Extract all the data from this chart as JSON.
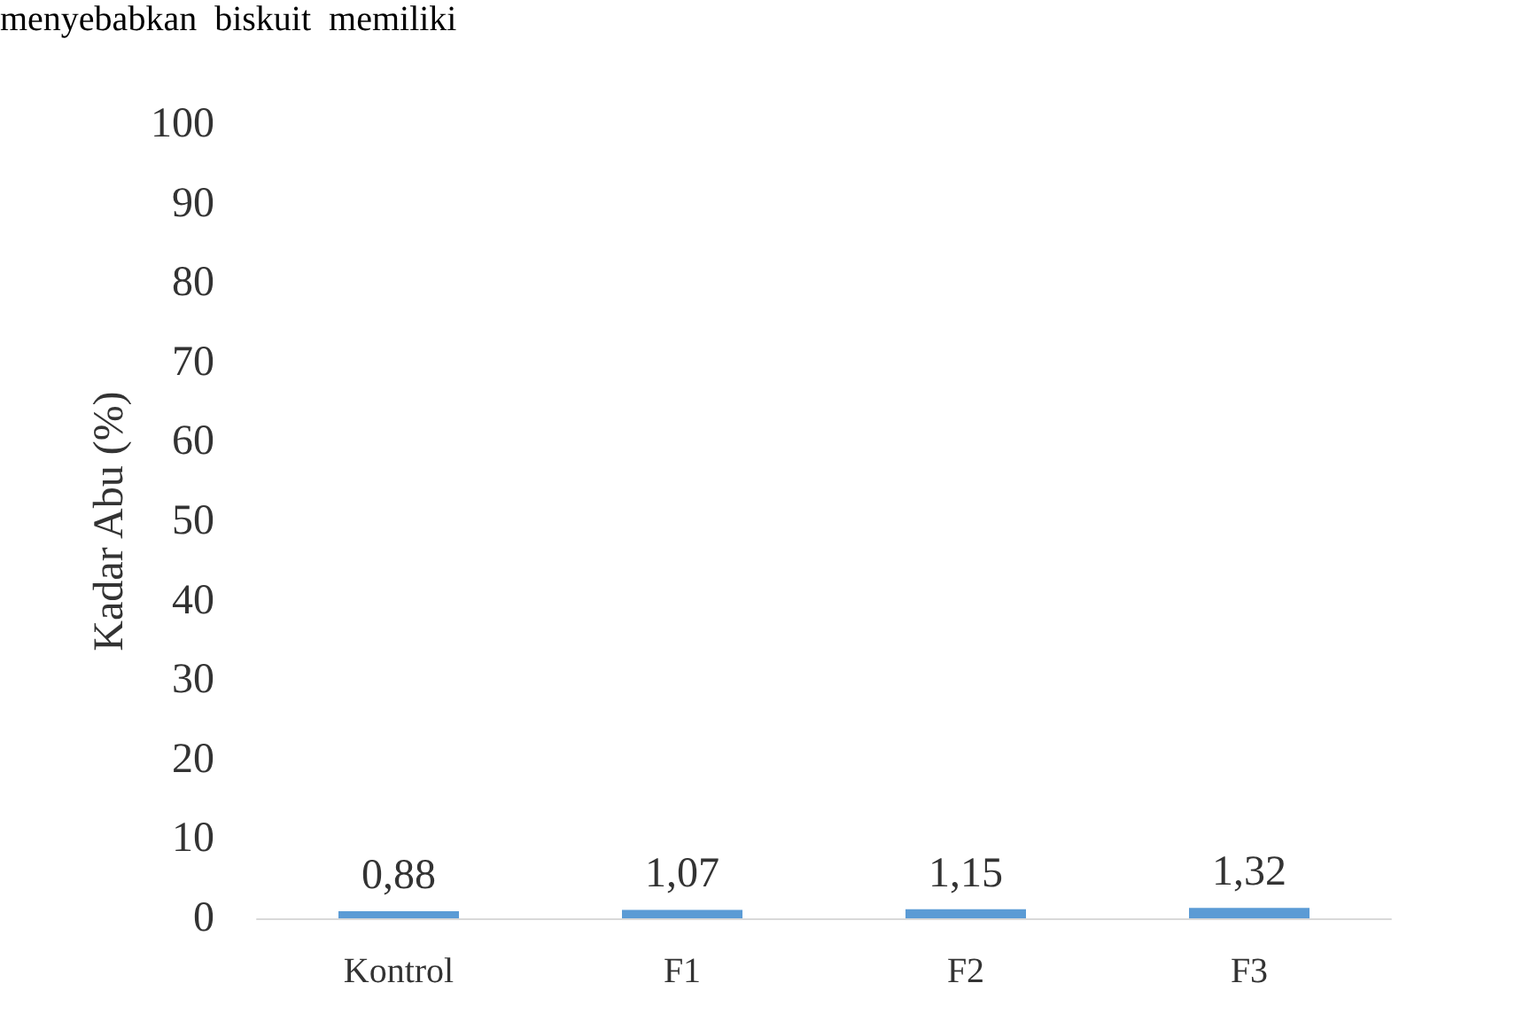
{
  "chart_data": {
    "type": "bar",
    "ylabel": "Kadar Abu (%)",
    "annotations": [
      "menyebabkan  biskuit  memiliki"
    ],
    "categories": [
      "Kontrol",
      "F1",
      "F2",
      "F3"
    ],
    "values": [
      0.88,
      1.07,
      1.15,
      1.32
    ],
    "value_labels": [
      "0,88",
      "1,07",
      "1,15",
      "1,32"
    ],
    "color": "#5b9bd5",
    "ylim": [
      0,
      100
    ],
    "yticks": [
      0,
      10,
      20,
      30,
      40,
      50,
      60,
      70,
      80,
      90,
      100
    ],
    "grid": false
  }
}
